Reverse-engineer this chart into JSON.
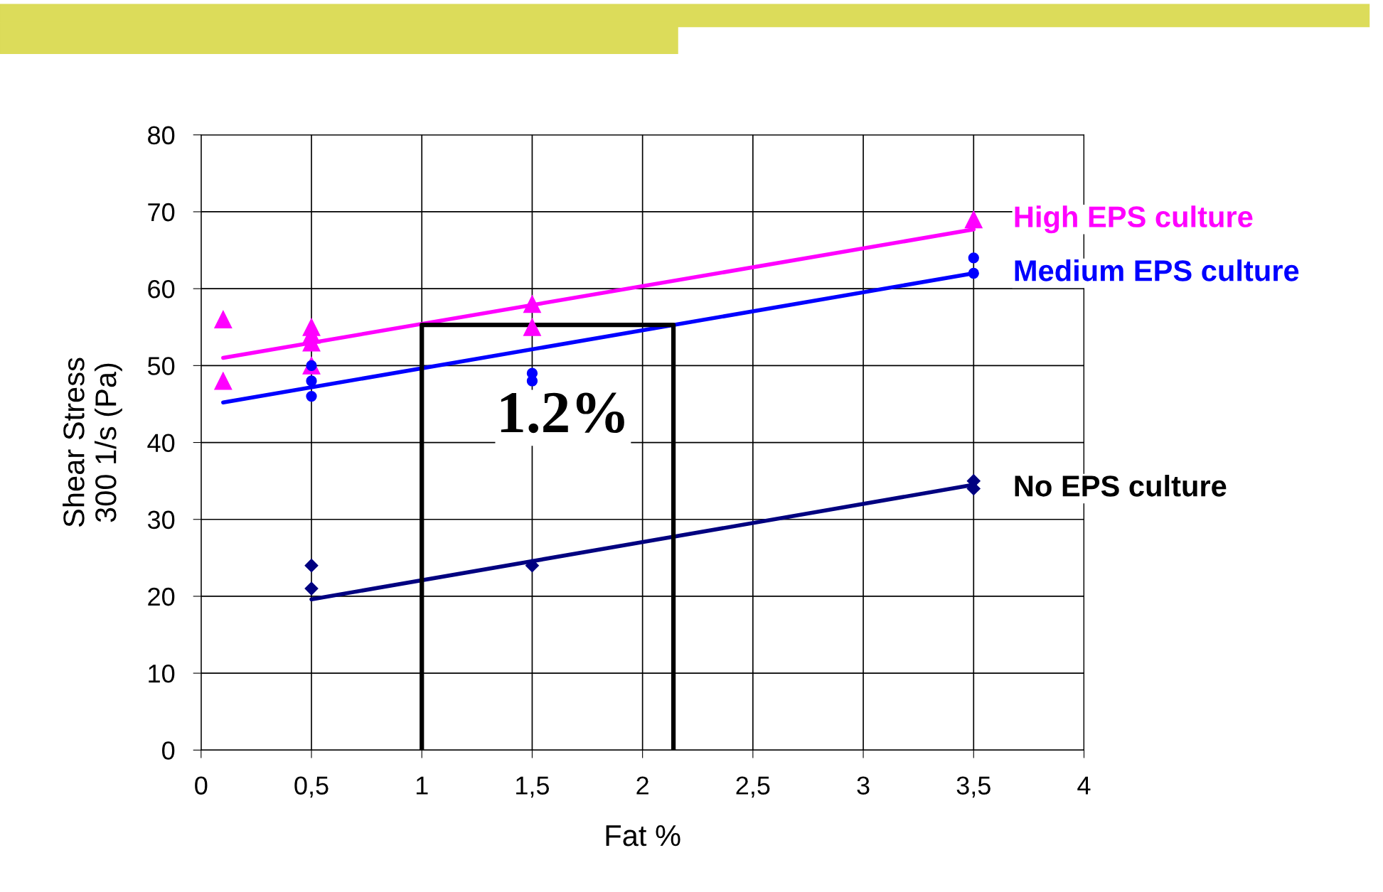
{
  "chart_data": {
    "type": "scatter",
    "xlabel": "Fat %",
    "ylabel": "Shear Stress\n300 1/s (Pa)",
    "xlim": [
      0,
      4
    ],
    "ylim": [
      0,
      80
    ],
    "xticks": [
      0,
      {
        "value": 0.5,
        "label": "0,5"
      },
      1,
      {
        "value": 1.5,
        "label": "1,5"
      },
      2,
      {
        "value": 2.5,
        "label": "2,5"
      },
      3,
      {
        "value": 3.5,
        "label": "3,5"
      },
      4
    ],
    "yticks": [
      0,
      10,
      20,
      30,
      40,
      50,
      60,
      70,
      80
    ],
    "grid": true,
    "legend": false,
    "series": [
      {
        "name": "High EPS culture",
        "color": "#ff00ff",
        "marker": "triangle",
        "x": [
          0.1,
          0.1,
          0.5,
          0.5,
          0.5,
          0.5,
          1.5,
          1.5,
          3.5
        ],
        "values": [
          56,
          48,
          55,
          54,
          53,
          50,
          58,
          55,
          69
        ]
      },
      {
        "name": "Medium EPS culture",
        "color": "#0000ff",
        "marker": "circle",
        "x": [
          0.5,
          0.5,
          0.5,
          1.5,
          1.5,
          3.5,
          3.5
        ],
        "values": [
          50,
          48,
          46,
          49,
          48,
          64,
          62
        ]
      },
      {
        "name": "No EPS culture",
        "color": "#000080",
        "marker": "diamond",
        "x": [
          0.5,
          0.5,
          1.5,
          3.5,
          3.5
        ],
        "values": [
          24,
          21,
          24,
          35,
          34
        ]
      },
      {
        "type": "line",
        "color": "#ff00ff",
        "x": [
          0.1,
          3.5
        ],
        "values": [
          51,
          67.7
        ]
      },
      {
        "type": "line",
        "color": "#0000ff",
        "x": [
          0.1,
          3.5
        ],
        "values": [
          45.2,
          62
        ]
      },
      {
        "type": "line",
        "color": "#000080",
        "x": [
          0.5,
          3.5
        ],
        "values": [
          19.6,
          34.5
        ]
      },
      {
        "type": "line",
        "color": "#000000",
        "x": [
          1.0,
          1.0,
          2.14,
          2.14
        ],
        "values": [
          0,
          55.3,
          55.3,
          0
        ]
      }
    ],
    "annotations": [
      "1.2%"
    ]
  }
}
